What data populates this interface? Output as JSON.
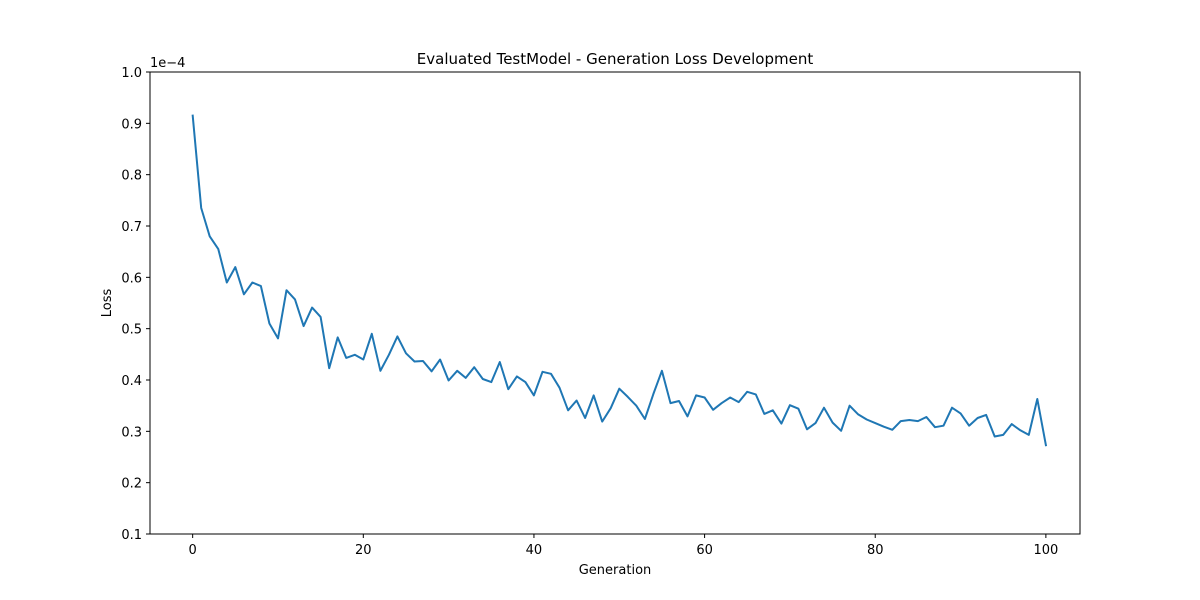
{
  "chart_data": {
    "type": "line",
    "title": "Evaluated TestModel - Generation Loss Development",
    "xlabel": "Generation",
    "ylabel": "Loss",
    "y_offset_label": "1e−4",
    "xlim": [
      -5,
      104
    ],
    "ylim": [
      0.1,
      1.0
    ],
    "x_ticks": [
      0,
      20,
      40,
      60,
      80,
      100
    ],
    "y_ticks": [
      0.1,
      0.2,
      0.3,
      0.4,
      0.5,
      0.6,
      0.7,
      0.8,
      0.9,
      1.0
    ],
    "x_tick_labels": [
      "0",
      "20",
      "40",
      "60",
      "80",
      "100"
    ],
    "y_tick_labels": [
      "0.1",
      "0.2",
      "0.3",
      "0.4",
      "0.5",
      "0.6",
      "0.7",
      "0.8",
      "0.9",
      "1.0"
    ],
    "grid": false,
    "line_color": "#1f77b4",
    "series": [
      {
        "values": [
          0.915,
          0.735,
          0.68,
          0.655,
          0.59,
          0.62,
          0.567,
          0.59,
          0.583,
          0.51,
          0.481,
          0.575,
          0.557,
          0.505,
          0.541,
          0.523,
          0.423,
          0.483,
          0.443,
          0.449,
          0.44,
          0.49,
          0.418,
          0.449,
          0.485,
          0.452,
          0.436,
          0.437,
          0.417,
          0.44,
          0.399,
          0.418,
          0.404,
          0.425,
          0.402,
          0.396,
          0.435,
          0.382,
          0.407,
          0.396,
          0.37,
          0.416,
          0.412,
          0.385,
          0.341,
          0.36,
          0.326,
          0.37,
          0.319,
          0.345,
          0.383,
          0.367,
          0.35,
          0.324,
          0.373,
          0.418,
          0.355,
          0.359,
          0.329,
          0.37,
          0.366,
          0.342,
          0.355,
          0.366,
          0.357,
          0.377,
          0.372,
          0.334,
          0.341,
          0.315,
          0.351,
          0.344,
          0.304,
          0.316,
          0.346,
          0.317,
          0.301,
          0.35,
          0.333,
          0.323,
          0.316,
          0.309,
          0.303,
          0.32,
          0.322,
          0.32,
          0.328,
          0.308,
          0.311,
          0.346,
          0.335,
          0.311,
          0.326,
          0.332,
          0.29,
          0.293,
          0.314,
          0.302,
          0.293,
          0.363,
          0.273
        ]
      }
    ]
  }
}
